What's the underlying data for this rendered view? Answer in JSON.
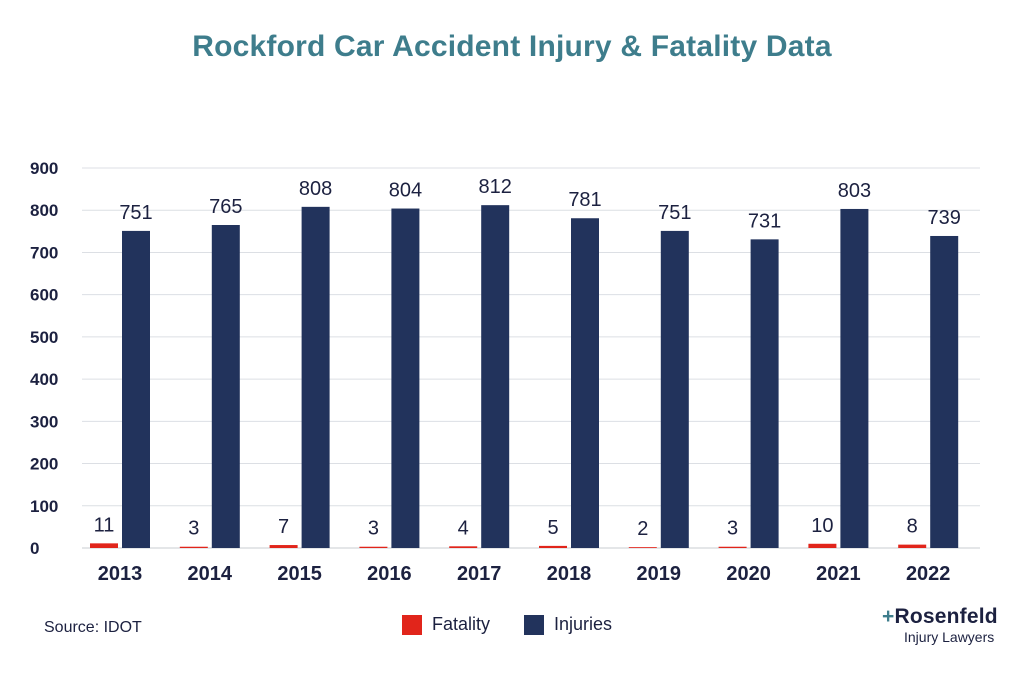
{
  "chart_data": {
    "type": "bar",
    "title": "Rockford Car Accident Injury & Fatality Data",
    "categories": [
      "2013",
      "2014",
      "2015",
      "2016",
      "2017",
      "2018",
      "2019",
      "2020",
      "2021",
      "2022"
    ],
    "series": [
      {
        "name": "Fatality",
        "color": "#e1251b",
        "values": [
          11,
          3,
          7,
          3,
          4,
          5,
          2,
          3,
          10,
          8
        ]
      },
      {
        "name": "Injuries",
        "color": "#22335c",
        "values": [
          751,
          765,
          808,
          804,
          812,
          781,
          751,
          731,
          803,
          739
        ]
      }
    ],
    "ylim": [
      0,
      900
    ],
    "yticks": [
      "0",
      "100",
      "200",
      "300",
      "400",
      "500",
      "600",
      "700",
      "800",
      "900"
    ],
    "xlabel": "",
    "ylabel": "",
    "grid": true,
    "legend": "bottom-center"
  },
  "footer": {
    "source": "Source: IDOT",
    "logo_plus": "+",
    "logo_name": "Rosenfeld",
    "logo_tagline": "Injury Lawyers"
  }
}
